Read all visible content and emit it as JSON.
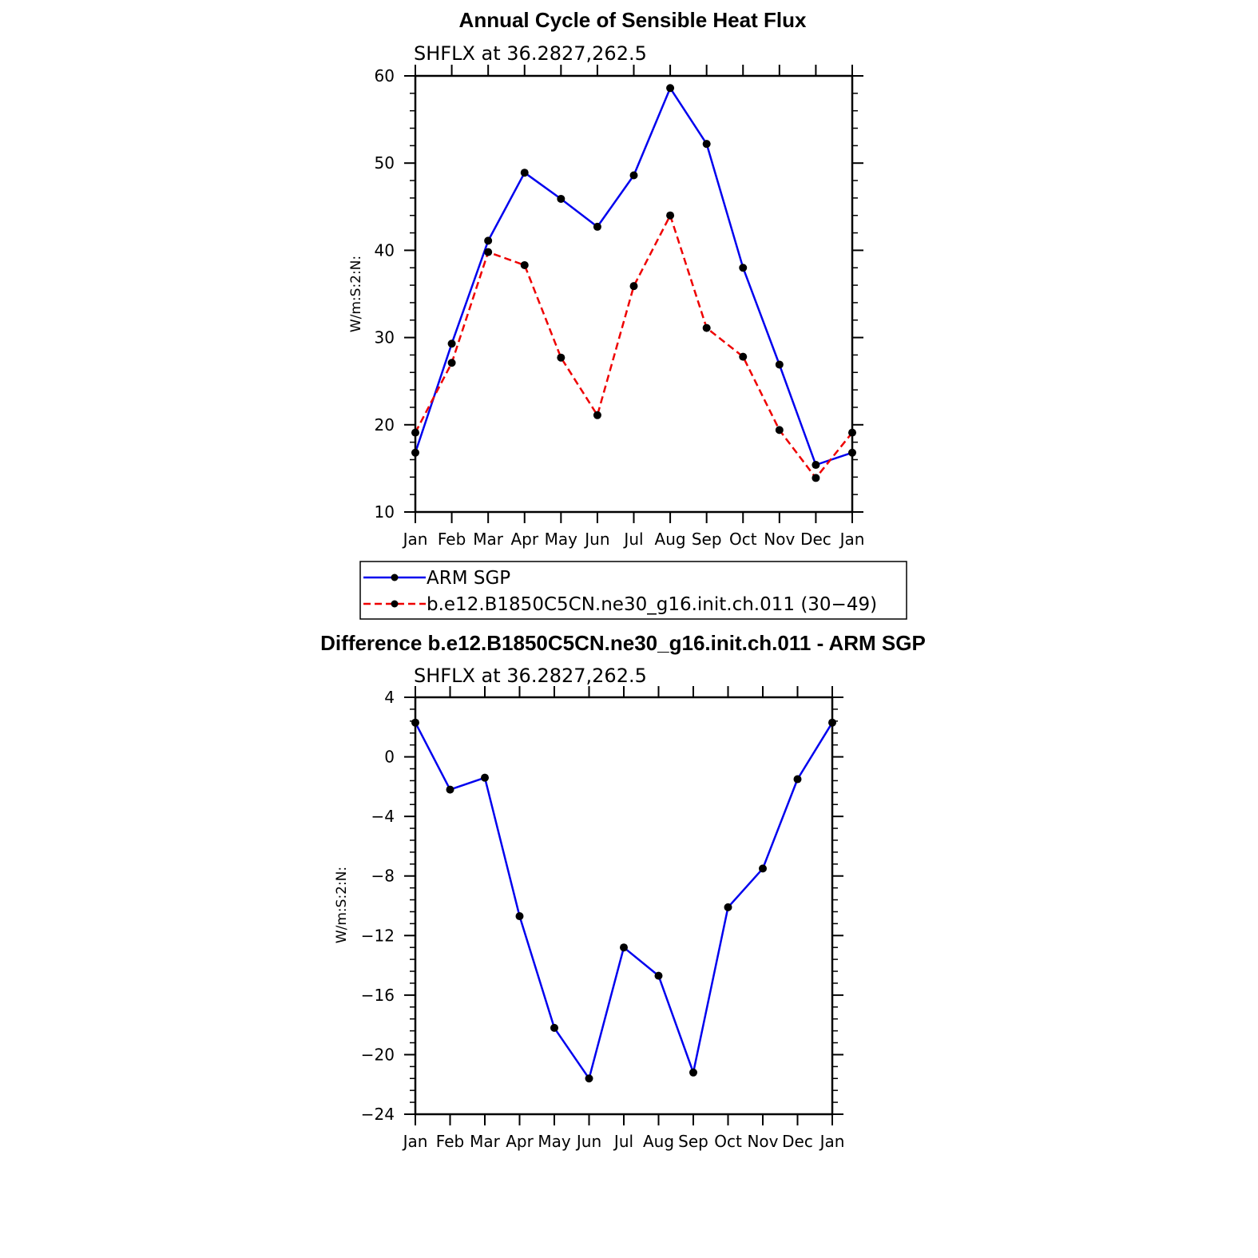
{
  "chart_data": [
    {
      "type": "line",
      "title": "Annual Cycle of Sensible Heat Flux",
      "subtitle": "SHFLX at 36.2827,262.5",
      "ylabel": "W/m:S:2:N:",
      "xlabel": "",
      "categories": [
        "Jan",
        "Feb",
        "Mar",
        "Apr",
        "May",
        "Jun",
        "Jul",
        "Aug",
        "Sep",
        "Oct",
        "Nov",
        "Dec",
        "Jan"
      ],
      "ylim": [
        10,
        60
      ],
      "yticks": [
        10,
        20,
        30,
        40,
        50,
        60
      ],
      "series": [
        {
          "name": "ARM SGP",
          "color": "#0000ee",
          "dash": "solid",
          "values": [
            16.8,
            29.3,
            41.1,
            48.9,
            45.9,
            42.7,
            48.6,
            58.6,
            52.2,
            38.0,
            26.9,
            15.4,
            16.8
          ]
        },
        {
          "name": "b.e12.B1850C5CN.ne30_g16.init.ch.011 (30−49)",
          "color": "#ee0000",
          "dash": "dashed",
          "values": [
            19.1,
            27.1,
            39.8,
            38.3,
            27.7,
            21.1,
            35.9,
            44.0,
            31.1,
            27.8,
            19.4,
            13.9,
            19.1
          ]
        }
      ],
      "legend": "below"
    },
    {
      "type": "line",
      "title": "Difference b.e12.B1850C5CN.ne30_g16.init.ch.011 - ARM SGP",
      "subtitle": "SHFLX at 36.2827,262.5",
      "ylabel": "W/m:S:2:N:",
      "xlabel": "",
      "categories": [
        "Jan",
        "Feb",
        "Mar",
        "Apr",
        "May",
        "Jun",
        "Jul",
        "Aug",
        "Sep",
        "Oct",
        "Nov",
        "Dec",
        "Jan"
      ],
      "ylim": [
        -24,
        4
      ],
      "yticks": [
        -24,
        -20,
        -16,
        -12,
        -8,
        -4,
        0,
        4
      ],
      "ytick_labels": [
        "−24",
        "−20",
        "−16",
        "−12",
        "−8",
        "−4",
        "0",
        "4"
      ],
      "series": [
        {
          "color": "#0000ee",
          "dash": "solid",
          "values": [
            2.3,
            -2.2,
            -1.4,
            -10.7,
            -18.2,
            -21.6,
            -12.8,
            -14.7,
            -21.2,
            -10.1,
            -7.5,
            -1.5,
            2.3
          ]
        }
      ]
    }
  ]
}
